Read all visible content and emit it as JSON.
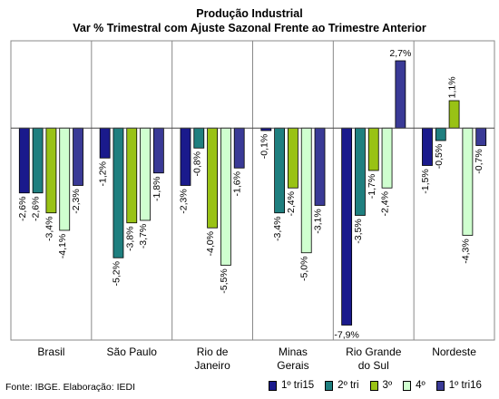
{
  "chart_data": {
    "type": "bar",
    "title": "Produção Industrial",
    "subtitle": "Var % Trimestral com Ajuste Sazonal Frente ao Trimestre Anterior",
    "categories": [
      "Brasil",
      "São Paulo",
      "Rio de Janeiro",
      "Minas Gerais",
      "Rio Grande do Sul",
      "Nordeste"
    ],
    "series": [
      {
        "name": "1º tri15",
        "color": "#1a1a8c",
        "values": [
          -2.6,
          -1.2,
          -2.3,
          -0.1,
          -7.9,
          -1.5
        ],
        "labels": [
          "-2,6%",
          "-1,2%",
          "-2,3%",
          "-0,1%",
          "-7,9%",
          "-1,5%"
        ]
      },
      {
        "name": "2º tri",
        "color": "#1f7f7f",
        "values": [
          -2.6,
          -5.2,
          -0.8,
          -3.4,
          -3.5,
          -0.5
        ],
        "labels": [
          "-2,6%",
          "-5,2%",
          "-0,8%",
          "-3,4%",
          "-3,5%",
          "-0,5%"
        ]
      },
      {
        "name": "3º",
        "color": "#99c215",
        "values": [
          -3.4,
          -3.8,
          -4.0,
          -2.4,
          -1.7,
          1.1
        ],
        "labels": [
          "-3,4%",
          "-3,8%",
          "-4,0%",
          "-2,4%",
          "-1,7%",
          "1,1%"
        ]
      },
      {
        "name": "4º",
        "color": "#cfffcf",
        "values": [
          -4.1,
          -3.7,
          -5.5,
          -5.0,
          -2.4,
          -4.3
        ],
        "labels": [
          "-4,1%",
          "-3,7%",
          "-5,5%",
          "-5,0%",
          "-2,4%",
          "-4,3%"
        ]
      },
      {
        "name": "1º tri16",
        "color": "#3a3a96",
        "values": [
          -2.3,
          -1.8,
          -1.6,
          -3.1,
          2.7,
          -0.7
        ],
        "labels": [
          "-2,3%",
          "-1,8%",
          "-1,6%",
          "-3,1%",
          "2,7%",
          "-0,7%"
        ]
      }
    ],
    "ylim": [
      -8.5,
      3.5
    ],
    "grid": false,
    "legend_position": "bottom-right"
  },
  "source": "Fonte: IBGE. Elaboração: IEDI"
}
